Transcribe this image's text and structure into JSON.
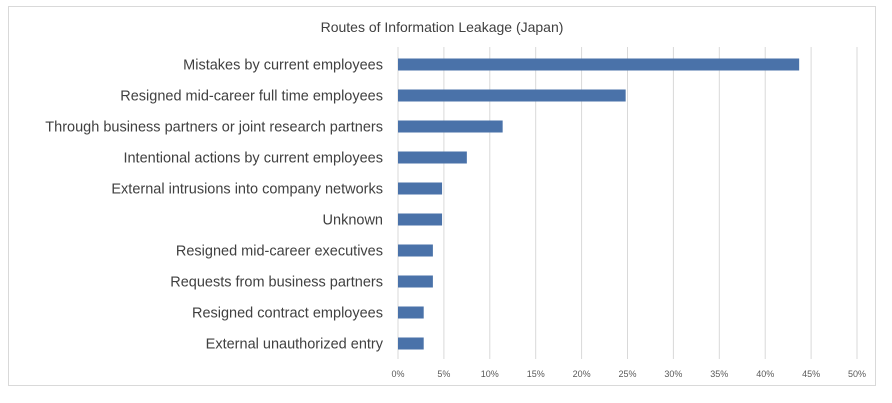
{
  "chart_data": {
    "type": "bar",
    "orientation": "horizontal",
    "title": "Routes of Information Leakage (Japan)",
    "xlabel": "",
    "ylabel": "",
    "categories": [
      "Mistakes by current employees",
      "Resigned mid-career full time employees",
      "Through business partners or joint research partners",
      "Intentional actions by current employees",
      "External intrusions into company networks",
      "Unknown",
      "Resigned mid-career executives",
      "Requests from business partners",
      "Resigned contract employees",
      "External unauthorized entry"
    ],
    "values": [
      43.7,
      24.8,
      11.4,
      7.5,
      4.8,
      4.8,
      3.8,
      3.8,
      2.8,
      2.8
    ],
    "xlim": [
      0,
      50
    ],
    "xticks": [
      "0%",
      "5%",
      "10%",
      "15%",
      "20%",
      "25%",
      "30%",
      "35%",
      "40%",
      "45%",
      "50%"
    ],
    "grid": "vertical",
    "legend": "none",
    "bar_color": "#4a72a9",
    "grid_color": "#d9d9d9"
  }
}
